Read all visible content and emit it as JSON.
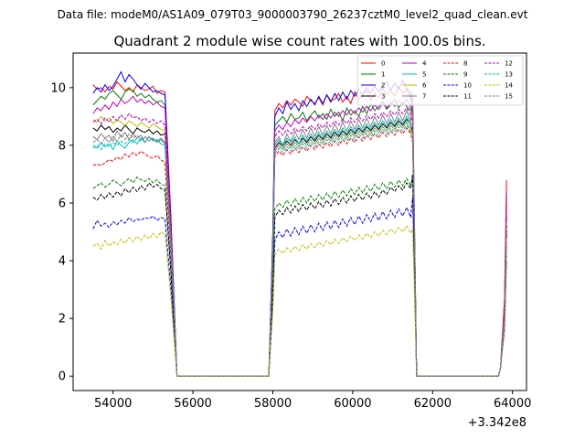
{
  "figure": {
    "suptitle": "Data file: modeM0/AS1A09_079T03_9000003790_26237cztM0_level2_quad_clean.evt"
  },
  "chart_data": {
    "type": "line",
    "title": "Quadrant 2 module wise count rates with 100.0s bins.",
    "xlabel": "",
    "ylabel": "",
    "x_offset_label": "+3.342e8",
    "xlim": [
      53000,
      64350
    ],
    "ylim": [
      -0.5,
      11.2
    ],
    "x_ticks": [
      54000,
      56000,
      58000,
      60000,
      62000,
      64000
    ],
    "x_tick_labels": [
      "54000",
      "56000",
      "58000",
      "60000",
      "62000",
      "64000"
    ],
    "y_ticks": [
      0,
      2,
      4,
      6,
      8,
      10
    ],
    "y_tick_labels": [
      "0",
      "2",
      "4",
      "6",
      "8",
      "10"
    ],
    "grid": false,
    "legend_position": "top-right",
    "segments": [
      {
        "start": 53500,
        "end": 55350,
        "step": 100
      },
      {
        "start": 58050,
        "end": 61450,
        "step": 100
      }
    ],
    "series": [
      {
        "name": "0",
        "color": "#ff0000",
        "dash": "solid",
        "seg1": [
          10.1,
          9.95,
          10.0,
          9.85,
          10.05,
          9.95,
          10.2,
          10.05,
          9.9,
          10.0,
          9.85,
          10.1,
          10.0,
          9.9,
          9.95,
          10.05,
          9.8,
          9.9,
          9.85
        ],
        "seg2": [
          9.2,
          9.45,
          9.3,
          9.55,
          9.4,
          9.6,
          9.5,
          9.35,
          9.7,
          9.55,
          9.45,
          9.65,
          9.4,
          9.75,
          9.55,
          9.6,
          9.8,
          9.5,
          9.7,
          9.45,
          9.85,
          9.6,
          9.75,
          9.9,
          9.55,
          9.8,
          9.65,
          10.0,
          9.75,
          9.9,
          9.7,
          10.05,
          9.8,
          9.95,
          9.6
        ]
      },
      {
        "name": "1",
        "color": "#008000",
        "dash": "solid",
        "seg1": [
          9.4,
          9.55,
          9.7,
          9.6,
          9.8,
          9.9,
          9.75,
          9.6,
          9.85,
          9.95,
          9.9,
          9.7,
          9.8,
          9.65,
          9.75,
          9.6,
          9.5,
          9.55,
          9.4
        ],
        "seg2": [
          8.7,
          8.85,
          9.0,
          8.8,
          9.1,
          8.9,
          8.95,
          9.15,
          8.85,
          9.05,
          9.2,
          8.95,
          9.1,
          8.9,
          9.25,
          9.0,
          9.15,
          8.85,
          9.3,
          9.05,
          9.2,
          9.0,
          9.35,
          9.1,
          9.45,
          9.2,
          9.35,
          9.55,
          9.25,
          9.4,
          9.6,
          9.3,
          9.5,
          9.35,
          9.2
        ]
      },
      {
        "name": "2",
        "color": "#0000ff",
        "dash": "solid",
        "seg1": [
          9.8,
          10.0,
          9.85,
          10.1,
          9.9,
          10.05,
          10.3,
          10.55,
          10.2,
          10.45,
          10.3,
          10.1,
          9.95,
          10.15,
          10.0,
          9.85,
          9.9,
          9.8,
          9.75
        ],
        "seg2": [
          9.0,
          9.3,
          9.1,
          9.5,
          9.25,
          9.45,
          9.2,
          9.55,
          9.35,
          9.6,
          9.4,
          9.7,
          9.45,
          9.75,
          9.5,
          9.8,
          9.55,
          9.85,
          9.6,
          9.9,
          9.7,
          9.95,
          9.75,
          10.0,
          9.8,
          10.05,
          9.85,
          10.1,
          10.2,
          9.9,
          10.15,
          9.95,
          10.25,
          10.0,
          9.8
        ]
      },
      {
        "name": "3",
        "color": "#000000",
        "dash": "solid",
        "seg1": [
          8.6,
          8.5,
          8.7,
          8.55,
          8.65,
          8.45,
          8.6,
          8.5,
          8.7,
          8.55,
          8.4,
          8.6,
          8.5,
          8.45,
          8.55,
          8.4,
          8.5,
          8.35,
          8.4
        ],
        "seg2": [
          7.9,
          8.1,
          7.95,
          8.15,
          8.0,
          8.2,
          8.05,
          8.25,
          8.1,
          8.3,
          8.15,
          8.35,
          8.2,
          8.4,
          8.25,
          8.45,
          8.3,
          8.5,
          8.35,
          8.55,
          8.4,
          8.6,
          8.45,
          8.65,
          8.5,
          8.7,
          8.55,
          8.75,
          8.6,
          8.8,
          8.65,
          8.85,
          8.7,
          8.9,
          8.75
        ]
      },
      {
        "name": "4",
        "color": "#bf00bf",
        "dash": "solid",
        "seg1": [
          9.1,
          9.3,
          9.2,
          9.4,
          9.25,
          9.5,
          9.35,
          9.6,
          9.45,
          9.55,
          9.7,
          9.5,
          9.6,
          9.45,
          9.55,
          9.4,
          9.5,
          9.35,
          9.3
        ],
        "seg2": [
          8.5,
          8.7,
          8.55,
          8.8,
          8.65,
          8.9,
          8.75,
          8.95,
          8.8,
          9.0,
          8.85,
          9.05,
          8.9,
          9.1,
          8.95,
          9.15,
          9.0,
          9.2,
          9.05,
          9.25,
          9.1,
          9.3,
          9.15,
          9.35,
          9.2,
          9.4,
          9.25,
          9.45,
          9.3,
          9.5,
          9.35,
          9.55,
          9.4,
          9.6,
          9.3
        ]
      },
      {
        "name": "5",
        "color": "#00bfbf",
        "dash": "solid",
        "seg1": [
          8.0,
          7.9,
          8.1,
          7.95,
          8.05,
          7.85,
          8.15,
          8.0,
          7.9,
          8.1,
          8.2,
          8.05,
          8.25,
          8.1,
          8.3,
          8.15,
          8.2,
          8.05,
          8.0
        ],
        "seg2": [
          8.0,
          8.2,
          7.95,
          8.25,
          8.1,
          8.3,
          8.05,
          8.35,
          8.15,
          8.4,
          8.2,
          8.45,
          8.25,
          8.5,
          8.3,
          8.55,
          8.35,
          8.6,
          8.4,
          8.65,
          8.45,
          8.7,
          8.5,
          8.75,
          8.55,
          8.8,
          8.6,
          8.85,
          8.65,
          8.9,
          8.7,
          8.95,
          8.75,
          9.0,
          8.7
        ]
      },
      {
        "name": "6",
        "color": "#bfbf00",
        "dash": "solid",
        "seg1": [
          8.9,
          8.8,
          9.0,
          8.85,
          8.95,
          8.75,
          8.9,
          8.8,
          8.7,
          8.85,
          8.75,
          8.65,
          8.8,
          8.7,
          8.6,
          8.75,
          8.65,
          8.55,
          8.5
        ],
        "seg2": [
          7.8,
          8.0,
          7.85,
          8.05,
          7.9,
          8.1,
          7.95,
          8.15,
          8.0,
          8.2,
          8.05,
          8.25,
          8.1,
          8.3,
          8.15,
          8.35,
          8.2,
          8.4,
          8.25,
          8.45,
          8.3,
          8.5,
          8.35,
          8.55,
          8.4,
          8.6,
          8.45,
          8.65,
          8.5,
          8.7,
          8.55,
          8.75,
          8.6,
          8.8,
          8.55
        ]
      },
      {
        "name": "7",
        "color": "#808080",
        "dash": "solid",
        "seg1": [
          8.3,
          8.2,
          8.4,
          8.25,
          8.35,
          8.15,
          8.5,
          8.3,
          8.45,
          8.2,
          8.4,
          8.25,
          8.35,
          8.1,
          8.3,
          8.2,
          8.15,
          8.25,
          8.1
        ],
        "seg2": [
          8.1,
          8.3,
          8.0,
          8.4,
          8.15,
          8.5,
          8.2,
          8.55,
          8.25,
          8.6,
          8.3,
          8.65,
          8.35,
          8.7,
          8.4,
          8.75,
          8.45,
          8.8,
          8.5,
          8.85,
          8.55,
          8.9,
          8.6,
          8.95,
          8.65,
          9.0,
          8.7,
          9.05,
          8.75,
          9.1,
          8.8,
          9.15,
          8.85,
          9.2,
          8.8
        ]
      },
      {
        "name": "8",
        "color": "#ff0000",
        "dash": "dashed",
        "seg1": [
          7.3,
          7.35,
          7.3,
          7.4,
          7.5,
          7.45,
          7.6,
          7.5,
          7.7,
          7.6,
          7.75,
          7.65,
          7.8,
          7.7,
          7.6,
          7.55,
          7.65,
          7.5,
          7.4
        ],
        "seg2": [
          7.6,
          7.8,
          7.65,
          7.85,
          7.7,
          7.9,
          7.75,
          7.95,
          7.8,
          8.0,
          7.85,
          8.05,
          7.9,
          8.1,
          7.95,
          8.15,
          8.0,
          8.2,
          8.05,
          8.25,
          8.1,
          8.3,
          8.15,
          8.35,
          8.2,
          8.4,
          8.25,
          8.45,
          8.3,
          8.5,
          8.35,
          8.55,
          8.4,
          8.6,
          8.4
        ]
      },
      {
        "name": "9",
        "color": "#008000",
        "dash": "dashed",
        "seg1": [
          6.5,
          6.6,
          6.7,
          6.55,
          6.65,
          6.8,
          6.7,
          6.6,
          6.75,
          6.85,
          6.7,
          6.9,
          6.8,
          6.75,
          6.85,
          6.7,
          6.8,
          6.65,
          6.6
        ],
        "seg2": [
          5.8,
          6.0,
          5.85,
          6.1,
          5.9,
          6.15,
          5.95,
          6.2,
          6.0,
          6.25,
          6.05,
          6.3,
          6.1,
          6.35,
          6.15,
          6.4,
          6.2,
          6.45,
          6.25,
          6.5,
          6.3,
          6.55,
          6.35,
          6.6,
          6.4,
          6.65,
          6.45,
          6.7,
          6.5,
          6.75,
          6.55,
          6.8,
          6.6,
          6.85,
          6.6
        ]
      },
      {
        "name": "10",
        "color": "#0000ff",
        "dash": "dashed",
        "seg1": [
          5.1,
          5.4,
          5.2,
          5.3,
          5.15,
          5.35,
          5.25,
          5.4,
          5.3,
          5.5,
          5.35,
          5.45,
          5.4,
          5.5,
          5.45,
          5.55,
          5.4,
          5.5,
          5.45
        ],
        "seg2": [
          4.7,
          5.0,
          4.8,
          5.1,
          4.85,
          5.15,
          4.9,
          5.2,
          4.95,
          5.25,
          5.0,
          5.3,
          5.05,
          5.35,
          5.1,
          5.4,
          5.15,
          5.45,
          5.2,
          5.5,
          5.25,
          5.55,
          5.3,
          5.6,
          5.35,
          5.65,
          5.4,
          5.7,
          5.45,
          5.75,
          5.5,
          5.8,
          5.55,
          5.85,
          5.5
        ]
      },
      {
        "name": "11",
        "color": "#000000",
        "dash": "dashed",
        "seg1": [
          6.2,
          6.1,
          6.3,
          6.15,
          6.35,
          6.2,
          6.4,
          6.25,
          6.5,
          6.35,
          6.55,
          6.4,
          6.6,
          6.45,
          6.7,
          6.55,
          6.65,
          6.5,
          6.45
        ],
        "seg2": [
          5.5,
          5.75,
          5.6,
          5.85,
          5.65,
          5.9,
          5.7,
          5.95,
          5.75,
          6.0,
          5.8,
          6.05,
          5.85,
          6.1,
          5.9,
          6.15,
          5.95,
          6.2,
          6.0,
          6.25,
          6.05,
          6.3,
          6.1,
          6.35,
          6.15,
          6.4,
          6.2,
          6.45,
          6.3,
          6.55,
          6.4,
          6.6,
          6.45,
          6.7,
          6.5
        ]
      },
      {
        "name": "12",
        "color": "#bf00bf",
        "dash": "dashed",
        "seg1": [
          8.8,
          8.9,
          8.75,
          8.95,
          8.8,
          9.0,
          8.85,
          9.05,
          8.9,
          9.1,
          8.95,
          9.0,
          8.85,
          8.95,
          8.8,
          8.9,
          8.75,
          8.85,
          8.7
        ],
        "seg2": [
          8.3,
          8.5,
          8.35,
          8.55,
          8.4,
          8.6,
          8.45,
          8.65,
          8.5,
          8.7,
          8.55,
          8.75,
          8.6,
          8.8,
          8.65,
          8.85,
          8.7,
          8.9,
          8.75,
          8.95,
          8.8,
          9.0,
          8.85,
          9.05,
          8.9,
          9.1,
          8.95,
          9.15,
          9.0,
          9.2,
          9.05,
          9.25,
          9.1,
          9.3,
          9.05
        ]
      },
      {
        "name": "13",
        "color": "#00bfbf",
        "dash": "dashed",
        "seg1": [
          7.9,
          8.0,
          7.85,
          8.05,
          7.95,
          8.1,
          8.0,
          8.15,
          8.05,
          8.2,
          8.1,
          8.25,
          8.15,
          8.3,
          8.2,
          8.25,
          8.1,
          8.2,
          8.05
        ],
        "seg2": [
          7.7,
          7.9,
          7.75,
          7.95,
          7.8,
          8.0,
          7.85,
          8.05,
          7.9,
          8.1,
          7.95,
          8.15,
          8.0,
          8.2,
          8.05,
          8.25,
          8.1,
          8.3,
          8.15,
          8.35,
          8.2,
          8.4,
          8.25,
          8.45,
          8.3,
          8.5,
          8.35,
          8.55,
          8.4,
          8.6,
          8.45,
          8.65,
          8.5,
          8.7,
          8.45
        ]
      },
      {
        "name": "14",
        "color": "#bfbf00",
        "dash": "dashed",
        "seg1": [
          4.5,
          4.6,
          4.4,
          4.7,
          4.5,
          4.65,
          4.55,
          4.75,
          4.6,
          4.8,
          4.65,
          4.85,
          4.7,
          4.9,
          4.75,
          4.95,
          4.8,
          5.0,
          4.9
        ],
        "seg2": [
          4.2,
          4.4,
          4.25,
          4.45,
          4.3,
          4.5,
          4.35,
          4.55,
          4.4,
          4.6,
          4.45,
          4.65,
          4.5,
          4.7,
          4.55,
          4.75,
          4.6,
          4.8,
          4.65,
          4.85,
          4.7,
          4.9,
          4.75,
          4.95,
          4.8,
          5.0,
          4.85,
          5.05,
          4.9,
          5.1,
          4.95,
          5.15,
          5.0,
          5.2,
          4.95
        ]
      },
      {
        "name": "15",
        "color": "#808080",
        "dash": "dashed",
        "seg1": [
          8.1,
          8.2,
          8.05,
          8.25,
          8.1,
          8.3,
          8.15,
          8.35,
          8.2,
          8.4,
          8.25,
          8.35,
          8.2,
          8.3,
          8.15,
          8.25,
          8.1,
          8.2,
          8.05
        ],
        "seg2": [
          7.8,
          8.0,
          7.85,
          8.05,
          7.9,
          8.1,
          7.95,
          8.15,
          8.0,
          8.2,
          8.05,
          8.25,
          8.1,
          8.3,
          8.15,
          8.35,
          8.2,
          8.4,
          8.25,
          8.45,
          8.3,
          8.5,
          8.35,
          8.55,
          8.4,
          8.6,
          8.45,
          8.65,
          8.5,
          8.7,
          8.55,
          8.75,
          8.6,
          8.8,
          8.55
        ]
      }
    ]
  }
}
